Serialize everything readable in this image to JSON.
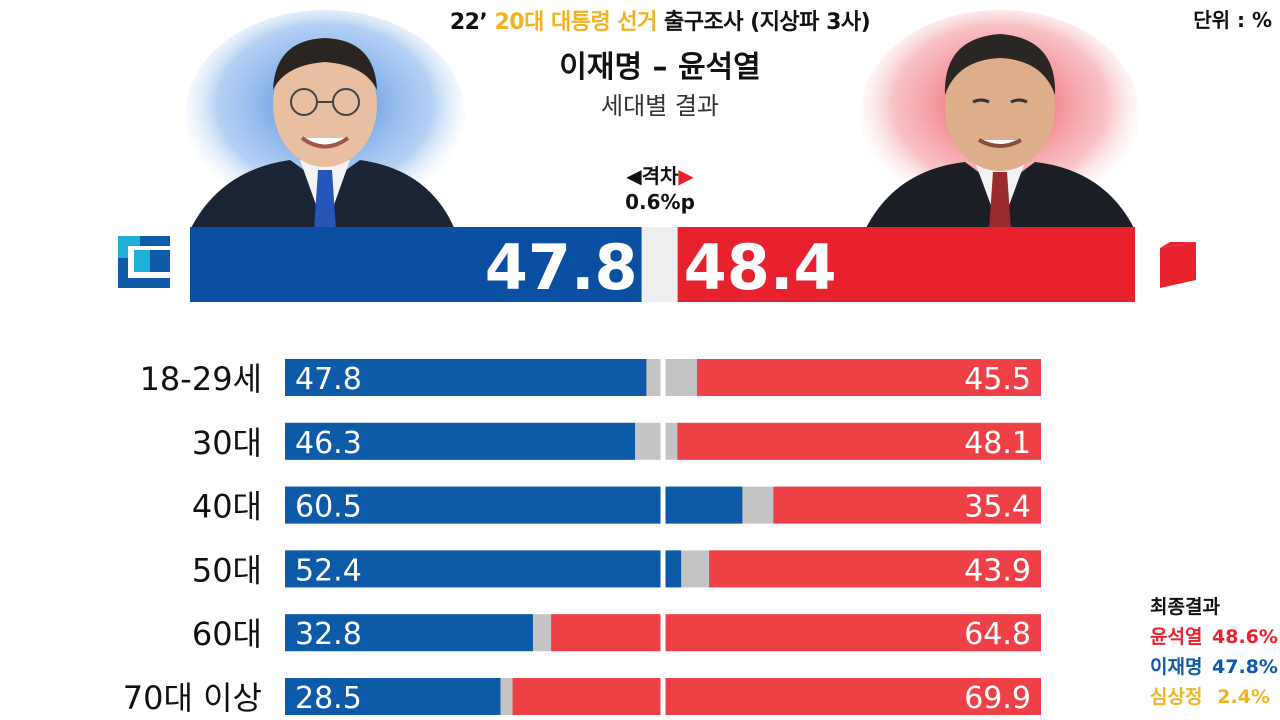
{
  "header": {
    "title_prefix": "22’",
    "title_highlight": "20대 대통령 선거",
    "title_suffix": "출구조사 (지상파 3사)",
    "names": "이재명 – 윤석열",
    "subtitle": "세대별 결과",
    "unit": "단위 : %"
  },
  "gap": {
    "label": "격차",
    "left_arrow": "◀",
    "right_arrow": "▶",
    "value": "0.6%p"
  },
  "colors": {
    "blue": "#0c5aa8",
    "main_blue": "#0b4fa3",
    "red": "#e8212e",
    "bar_red": "#ee4046",
    "gray": "#c4c4c4",
    "yellow": "#f2b323"
  },
  "icons": {
    "left_party": "democratic-party-logo-icon",
    "right_party": "people-power-party-logo-icon"
  },
  "chart_data": {
    "type": "bar",
    "main": {
      "lee": 47.8,
      "yoon": 48.4,
      "lee_label": "47.8",
      "yoon_label": "48.4"
    },
    "categories": [
      "18-29세",
      "30대",
      "40대",
      "50대",
      "60대",
      "70대 이상"
    ],
    "series": [
      {
        "name": "이재명",
        "values": [
          47.8,
          46.3,
          60.5,
          52.4,
          32.8,
          28.5
        ]
      },
      {
        "name": "윤석열",
        "values": [
          45.5,
          48.1,
          35.4,
          43.9,
          64.8,
          69.9
        ]
      }
    ],
    "value_labels": {
      "lee": [
        "47.8",
        "46.3",
        "60.5",
        "52.4",
        "32.8",
        "28.5"
      ],
      "yoon": [
        "45.5",
        "48.1",
        "35.4",
        "43.9",
        "64.8",
        "69.9"
      ]
    }
  },
  "legend": {
    "title": "최종결과",
    "items": [
      {
        "name": "윤석열",
        "pct": "48.6%",
        "color": "#e8212e"
      },
      {
        "name": "이재명",
        "pct": "47.8%",
        "color": "#0c5aa8"
      },
      {
        "name": "심상정",
        "pct": "2.4%",
        "color": "#f2b323"
      }
    ]
  }
}
